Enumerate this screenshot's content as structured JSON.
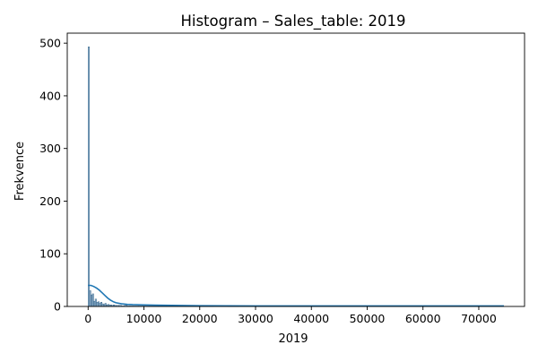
{
  "chart_data": {
    "type": "histogram",
    "title": "Histogram – Sales_table: 2019",
    "xlabel": "2019",
    "ylabel": "Frekvence",
    "xlim": [
      -3740,
      78200
    ],
    "ylim": [
      0,
      519
    ],
    "x_ticks": [
      0,
      10000,
      20000,
      30000,
      40000,
      50000,
      60000,
      70000
    ],
    "y_ticks": [
      0,
      100,
      200,
      300,
      400,
      500
    ],
    "grid": false,
    "legend": "none",
    "bar_color": "#7a9fbd",
    "bar_edge_color": "#2d5f86",
    "kde_color": "#1f77b4",
    "bins": [
      {
        "x0": 0,
        "x1": 250,
        "count": 493
      },
      {
        "x0": 250,
        "x1": 500,
        "count": 30
      },
      {
        "x0": 500,
        "x1": 750,
        "count": 22
      },
      {
        "x0": 750,
        "x1": 1000,
        "count": 24
      },
      {
        "x0": 1000,
        "x1": 1250,
        "count": 10
      },
      {
        "x0": 1250,
        "x1": 1500,
        "count": 14
      },
      {
        "x0": 1500,
        "x1": 1750,
        "count": 8
      },
      {
        "x0": 1750,
        "x1": 2000,
        "count": 9
      },
      {
        "x0": 2000,
        "x1": 2250,
        "count": 6
      },
      {
        "x0": 2250,
        "x1": 2500,
        "count": 8
      },
      {
        "x0": 2500,
        "x1": 2750,
        "count": 5
      },
      {
        "x0": 2750,
        "x1": 3000,
        "count": 4
      },
      {
        "x0": 3000,
        "x1": 3250,
        "count": 6
      },
      {
        "x0": 3250,
        "x1": 3500,
        "count": 3
      },
      {
        "x0": 3500,
        "x1": 3750,
        "count": 4
      },
      {
        "x0": 3750,
        "x1": 4000,
        "count": 3
      },
      {
        "x0": 4000,
        "x1": 4250,
        "count": 3
      },
      {
        "x0": 4250,
        "x1": 4500,
        "count": 2
      },
      {
        "x0": 4500,
        "x1": 4750,
        "count": 3
      },
      {
        "x0": 4750,
        "x1": 5000,
        "count": 2
      },
      {
        "x0": 5000,
        "x1": 5500,
        "count": 2
      },
      {
        "x0": 5500,
        "x1": 6000,
        "count": 2
      },
      {
        "x0": 6000,
        "x1": 6500,
        "count": 1
      },
      {
        "x0": 6500,
        "x1": 7000,
        "count": 2
      },
      {
        "x0": 7000,
        "x1": 7500,
        "count": 1
      },
      {
        "x0": 7500,
        "x1": 8000,
        "count": 1
      },
      {
        "x0": 8000,
        "x1": 9000,
        "count": 1
      },
      {
        "x0": 9000,
        "x1": 10000,
        "count": 1
      },
      {
        "x0": 10000,
        "x1": 11000,
        "count": 1
      },
      {
        "x0": 11000,
        "x1": 12500,
        "count": 1
      },
      {
        "x0": 12500,
        "x1": 14000,
        "count": 1
      },
      {
        "x0": 14000,
        "x1": 16000,
        "count": 1
      },
      {
        "x0": 16000,
        "x1": 18000,
        "count": 1
      },
      {
        "x0": 18000,
        "x1": 20000,
        "count": 1
      },
      {
        "x0": 20000,
        "x1": 22500,
        "count": 1
      },
      {
        "x0": 25000,
        "x1": 27000,
        "count": 1
      }
    ],
    "kde": {
      "x": [
        0,
        500,
        1000,
        1500,
        2000,
        2500,
        3000,
        3500,
        4000,
        4500,
        5000,
        6000,
        7000,
        8000,
        10000,
        12000,
        15000,
        20000,
        25000,
        30000,
        40000,
        50000,
        60000,
        70000,
        74500
      ],
      "y": [
        40,
        40,
        38,
        35,
        31,
        26,
        21,
        16,
        12,
        9,
        7,
        5,
        4,
        3.5,
        3,
        2.5,
        2,
        1.5,
        1.2,
        1,
        1,
        1,
        1,
        1,
        1
      ]
    }
  }
}
